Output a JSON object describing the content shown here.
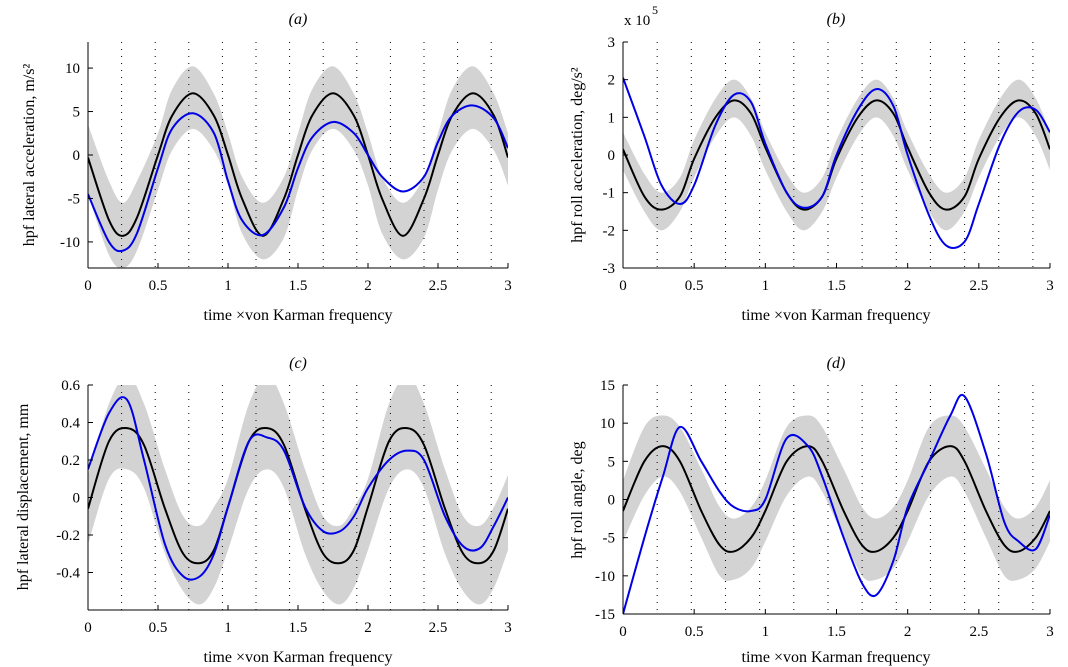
{
  "colors": {
    "band": "#d3d3d3",
    "mean": "#000000",
    "measured": "#0000e6",
    "grid": "#000000",
    "axis": "#000000"
  },
  "chart_data": [
    {
      "type": "line",
      "title": "(a)",
      "xlabel": "time ×von Karman frequency",
      "ylabel": "hpf lateral acceleration, m/s²",
      "xlim": [
        0,
        3
      ],
      "ylim": [
        -13,
        13
      ],
      "xticks": [
        0,
        0.5,
        1,
        1.5,
        2,
        2.5,
        3
      ],
      "xtick_labels": [
        "0",
        "0.5",
        "1",
        "1.5",
        "2",
        "2.5",
        "3"
      ],
      "yticks": [
        -10,
        -5,
        0,
        5,
        10
      ],
      "ytick_labels": [
        "-10",
        "-5",
        "0",
        "5",
        "10"
      ],
      "grid": "dotted vertical",
      "x": [
        0,
        0.15,
        0.25,
        0.35,
        0.5,
        0.6,
        0.75,
        0.9,
        1,
        1.1,
        1.25,
        1.4,
        1.5,
        1.6,
        1.75,
        1.9,
        2,
        2.1,
        2.25,
        2.4,
        2.5,
        2.6,
        2.75,
        2.9,
        3
      ],
      "series": [
        {
          "role": "band_upper",
          "values": [
            3.5,
            -3,
            -5.5,
            -3,
            2.5,
            7.5,
            10.2,
            7,
            2.5,
            -2.5,
            -5.5,
            -2.5,
            2.5,
            7.5,
            10.2,
            7,
            2.5,
            -2.5,
            -5.5,
            -2.5,
            2.5,
            7.5,
            10.2,
            7,
            2.5
          ]
        },
        {
          "role": "band_lower",
          "values": [
            -4.5,
            -11.5,
            -13,
            -11,
            -4,
            0.5,
            3,
            0.5,
            -3.5,
            -9,
            -12,
            -9.5,
            -4,
            0.5,
            3,
            0.5,
            -3.5,
            -9,
            -12,
            -9.5,
            -4,
            0.5,
            3,
            0.5,
            -3.5
          ]
        },
        {
          "role": "mean",
          "values": [
            -0.3,
            -7.5,
            -9.3,
            -7.2,
            0,
            4.5,
            7.1,
            4.5,
            0,
            -5,
            -9.3,
            -5,
            0,
            4.5,
            7.1,
            4.5,
            0,
            -5,
            -9.3,
            -5,
            0,
            4.5,
            7.1,
            4.5,
            -0.3
          ]
        },
        {
          "role": "measured",
          "values": [
            -4.5,
            -10,
            -11,
            -9,
            -1.5,
            3,
            4.8,
            2.5,
            -3,
            -7.5,
            -9.2,
            -6,
            -1.5,
            2,
            3.8,
            2.5,
            0,
            -2.5,
            -4.2,
            -2.5,
            1.5,
            4.5,
            5.7,
            4.2,
            0.8
          ]
        }
      ]
    },
    {
      "type": "line",
      "title": "(b)",
      "xlabel": "time ×von Karman frequency",
      "ylabel": "hpf roll acceleration, deg/s²",
      "scale_label": "x 10",
      "scale_exponent": "5",
      "xlim": [
        0,
        3
      ],
      "ylim": [
        -3,
        3
      ],
      "xticks": [
        0,
        0.5,
        1,
        1.5,
        2,
        2.5,
        3
      ],
      "xtick_labels": [
        "0",
        "0.5",
        "1",
        "1.5",
        "2",
        "2.5",
        "3"
      ],
      "yticks": [
        -3,
        -2,
        -1,
        0,
        1,
        2,
        3
      ],
      "ytick_labels": [
        "-3",
        "-2",
        "-1",
        "0",
        "1",
        "2",
        "3"
      ],
      "grid": "dotted vertical",
      "x": [
        0,
        0.15,
        0.27,
        0.4,
        0.5,
        0.65,
        0.78,
        0.9,
        1,
        1.15,
        1.27,
        1.4,
        1.5,
        1.65,
        1.78,
        1.9,
        2,
        2.15,
        2.27,
        2.4,
        2.5,
        2.65,
        2.78,
        2.9,
        3
      ],
      "series": [
        {
          "role": "band_upper",
          "values": [
            0.6,
            -0.5,
            -1.0,
            -0.6,
            0.4,
            1.5,
            2.0,
            1.5,
            0.6,
            -0.5,
            -1.0,
            -0.6,
            0.4,
            1.5,
            2.0,
            1.5,
            0.6,
            -0.5,
            -1.0,
            -0.6,
            0.4,
            1.5,
            2.0,
            1.5,
            0.6
          ]
        },
        {
          "role": "band_lower",
          "values": [
            -0.4,
            -1.5,
            -2.0,
            -1.5,
            -0.6,
            0.5,
            1.0,
            0.5,
            -0.4,
            -1.5,
            -2.0,
            -1.5,
            -0.6,
            0.5,
            1.0,
            0.5,
            -0.4,
            -1.5,
            -2.0,
            -1.5,
            -0.6,
            0.5,
            1.0,
            0.5,
            -0.4
          ]
        },
        {
          "role": "mean",
          "values": [
            0.15,
            -1.1,
            -1.45,
            -1.1,
            -0.1,
            1.0,
            1.45,
            1.1,
            0.2,
            -1.0,
            -1.45,
            -1.1,
            -0.1,
            1.0,
            1.45,
            1.1,
            0.2,
            -1.0,
            -1.45,
            -1.1,
            -0.1,
            1.0,
            1.45,
            1.1,
            0.15
          ]
        },
        {
          "role": "measured",
          "values": [
            2.05,
            0.5,
            -0.8,
            -1.3,
            -0.8,
            0.8,
            1.6,
            1.4,
            0.3,
            -1.0,
            -1.4,
            -1.1,
            0,
            1.2,
            1.75,
            1.3,
            0,
            -1.6,
            -2.4,
            -2.3,
            -1.3,
            0.3,
            1.15,
            1.2,
            0.6
          ]
        }
      ]
    },
    {
      "type": "line",
      "title": "(c)",
      "xlabel": "time ×von Karman frequency",
      "ylabel": "hpf lateral displacement, mm",
      "xlim": [
        0,
        3
      ],
      "ylim": [
        -0.6,
        0.6
      ],
      "xticks": [
        0,
        0.5,
        1,
        1.5,
        2,
        2.5,
        3
      ],
      "xtick_labels": [
        "0",
        "0.5",
        "1",
        "1.5",
        "2",
        "2.5",
        "3"
      ],
      "yticks": [
        -0.4,
        -0.2,
        0,
        0.2,
        0.4,
        0.6
      ],
      "ytick_labels": [
        "-0.4",
        "-0.2",
        "0",
        "0.2",
        "0.4",
        "0.6"
      ],
      "grid": "dotted vertical",
      "x": [
        0,
        0.15,
        0.28,
        0.4,
        0.55,
        0.68,
        0.8,
        0.9,
        1,
        1.15,
        1.28,
        1.4,
        1.55,
        1.68,
        1.8,
        1.9,
        2,
        2.15,
        2.28,
        2.4,
        2.55,
        2.68,
        2.8,
        2.9,
        3
      ],
      "series": [
        {
          "role": "band_upper",
          "values": [
            0.12,
            0.5,
            0.65,
            0.5,
            0.15,
            -0.1,
            -0.15,
            -0.05,
            0.1,
            0.5,
            0.65,
            0.5,
            0.15,
            -0.1,
            -0.15,
            -0.05,
            0.1,
            0.5,
            0.65,
            0.5,
            0.15,
            -0.1,
            -0.15,
            -0.05,
            0.12
          ]
        },
        {
          "role": "band_lower",
          "values": [
            -0.25,
            0.1,
            0.15,
            0.05,
            -0.3,
            -0.5,
            -0.57,
            -0.48,
            -0.28,
            0.05,
            0.15,
            0.05,
            -0.3,
            -0.5,
            -0.57,
            -0.48,
            -0.28,
            0.05,
            0.15,
            0.05,
            -0.3,
            -0.5,
            -0.57,
            -0.48,
            -0.28
          ]
        },
        {
          "role": "mean",
          "values": [
            -0.06,
            0.3,
            0.37,
            0.28,
            -0.06,
            -0.3,
            -0.35,
            -0.28,
            -0.05,
            0.3,
            0.37,
            0.28,
            -0.06,
            -0.3,
            -0.35,
            -0.28,
            -0.05,
            0.3,
            0.37,
            0.28,
            -0.06,
            -0.3,
            -0.35,
            -0.28,
            -0.06
          ]
        },
        {
          "role": "measured",
          "values": [
            0.15,
            0.45,
            0.52,
            0.2,
            -0.25,
            -0.42,
            -0.42,
            -0.3,
            -0.05,
            0.3,
            0.32,
            0.25,
            -0.05,
            -0.18,
            -0.18,
            -0.1,
            0.05,
            0.2,
            0.25,
            0.2,
            -0.1,
            -0.26,
            -0.27,
            -0.15,
            0.0
          ]
        }
      ]
    },
    {
      "type": "line",
      "title": "(d)",
      "xlabel": "time ×von Karman frequency",
      "ylabel": "hpf roll angle, deg",
      "xlim": [
        0,
        3
      ],
      "ylim": [
        -15,
        15
      ],
      "xticks": [
        0,
        0.5,
        1,
        1.5,
        2,
        2.5,
        3
      ],
      "xtick_labels": [
        "0",
        "0.5",
        "1",
        "1.5",
        "2",
        "2.5",
        "3"
      ],
      "yticks": [
        -15,
        -10,
        -5,
        0,
        5,
        10,
        15
      ],
      "ytick_labels": [
        "-15",
        "-10",
        "-5",
        "0",
        "5",
        "10",
        "15"
      ],
      "grid": "dotted vertical",
      "x": [
        0,
        0.15,
        0.28,
        0.4,
        0.55,
        0.68,
        0.78,
        0.9,
        1,
        1.15,
        1.3,
        1.4,
        1.55,
        1.68,
        1.78,
        1.9,
        2,
        2.15,
        2.3,
        2.4,
        2.55,
        2.68,
        2.78,
        2.9,
        3
      ],
      "series": [
        {
          "role": "band_upper",
          "values": [
            2.5,
            9.5,
            11,
            9.5,
            4,
            -1,
            -2.5,
            -1,
            2.5,
            9.5,
            11,
            9.5,
            4,
            -1,
            -2.5,
            -1,
            2.5,
            9.5,
            11,
            9.5,
            4,
            -1,
            -2.5,
            -1,
            2.5
          ]
        },
        {
          "role": "band_lower",
          "values": [
            -5.5,
            0.5,
            3,
            1,
            -5,
            -10,
            -10.5,
            -9,
            -5.5,
            0.5,
            3,
            1,
            -5,
            -10,
            -10.5,
            -9,
            -5.5,
            0.5,
            3,
            1,
            -5,
            -10,
            -10.5,
            -9,
            -5.5
          ]
        },
        {
          "role": "mean",
          "values": [
            -1.5,
            5,
            7,
            5,
            -1.5,
            -6,
            -6.8,
            -5,
            -1.5,
            5,
            7,
            5,
            -1.5,
            -6,
            -6.8,
            -5,
            -1.5,
            5,
            7,
            5,
            -1.5,
            -6,
            -6.8,
            -5,
            -1.5
          ]
        },
        {
          "role": "measured",
          "values": [
            -15,
            -5,
            3,
            9.5,
            5,
            1,
            -1,
            -1.5,
            0,
            8,
            7,
            3,
            -5,
            -11,
            -12.5,
            -8,
            -1,
            5,
            11,
            13.5,
            6,
            -3,
            -5.5,
            -6.5,
            -2
          ]
        }
      ]
    }
  ]
}
